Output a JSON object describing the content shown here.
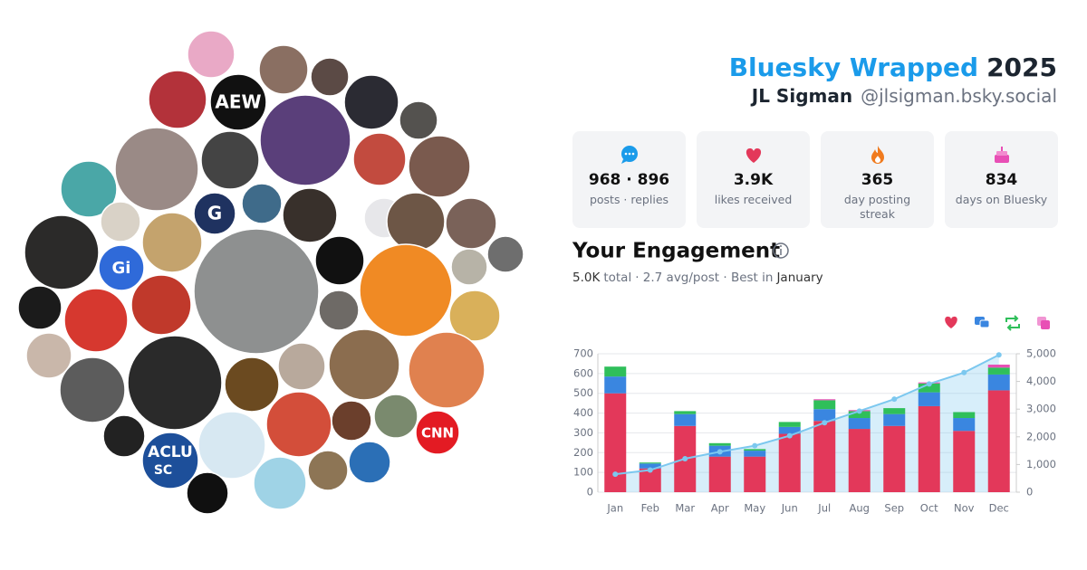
{
  "header": {
    "title": "Bluesky Wrapped",
    "year": "2025",
    "name": "JL Sigman",
    "handle": "@jlsigman.bsky.social"
  },
  "avatar_logos": [
    "AEW",
    "G",
    "Gi",
    "CNN",
    "ACLU",
    "SC"
  ],
  "stats": [
    {
      "value": "968 · 896",
      "label": "posts · replies"
    },
    {
      "value": "3.9K",
      "label": "likes received"
    },
    {
      "value": "365",
      "label": "day posting streak"
    },
    {
      "value": "834",
      "label": "days on Bluesky"
    }
  ],
  "engagement": {
    "heading": "Your Engagement",
    "total": "5.0K",
    "total_word": "total",
    "avg": "· 2.7 avg/post · Best in",
    "best_month": "January"
  },
  "chart_data": {
    "type": "stacked-bar-line",
    "categories": [
      "Jan",
      "Feb",
      "Mar",
      "Apr",
      "May",
      "Jun",
      "Jul",
      "Aug",
      "Sep",
      "Oct",
      "Nov",
      "Dec"
    ],
    "series": [
      {
        "color": "#e3385a",
        "values": [
          500,
          120,
          335,
          180,
          180,
          295,
          360,
          320,
          335,
          435,
          310,
          515
        ]
      },
      {
        "color": "#3a86e0",
        "values": [
          85,
          25,
          60,
          55,
          30,
          35,
          60,
          55,
          60,
          70,
          65,
          80
        ]
      },
      {
        "color": "#2fbf5a",
        "values": [
          50,
          5,
          15,
          13,
          8,
          25,
          45,
          35,
          30,
          45,
          30,
          35
        ]
      },
      {
        "color": "#e84fb5",
        "values": [
          0,
          0,
          0,
          0,
          0,
          0,
          5,
          5,
          0,
          5,
          0,
          15
        ]
      },
      {
        "color": "#7cc8ef",
        "axis": "y2",
        "values": [
          650,
          800,
          1210,
          1460,
          1680,
          2040,
          2510,
          2930,
          3360,
          3910,
          4320,
          4960
        ]
      }
    ],
    "ylim": [
      0,
      700
    ],
    "yticks": [
      0,
      100,
      200,
      300,
      400,
      500,
      600,
      700
    ],
    "y2lim": [
      0,
      5000
    ],
    "y2ticks": [
      0,
      {
        "value": 1000,
        "label": "1,000"
      },
      {
        "value": 2000,
        "label": "2,000"
      },
      {
        "value": 3000,
        "label": "3,000"
      },
      {
        "value": 4000,
        "label": "4,000"
      },
      {
        "value": 5000,
        "label": "5,000"
      }
    ],
    "grid": true
  }
}
